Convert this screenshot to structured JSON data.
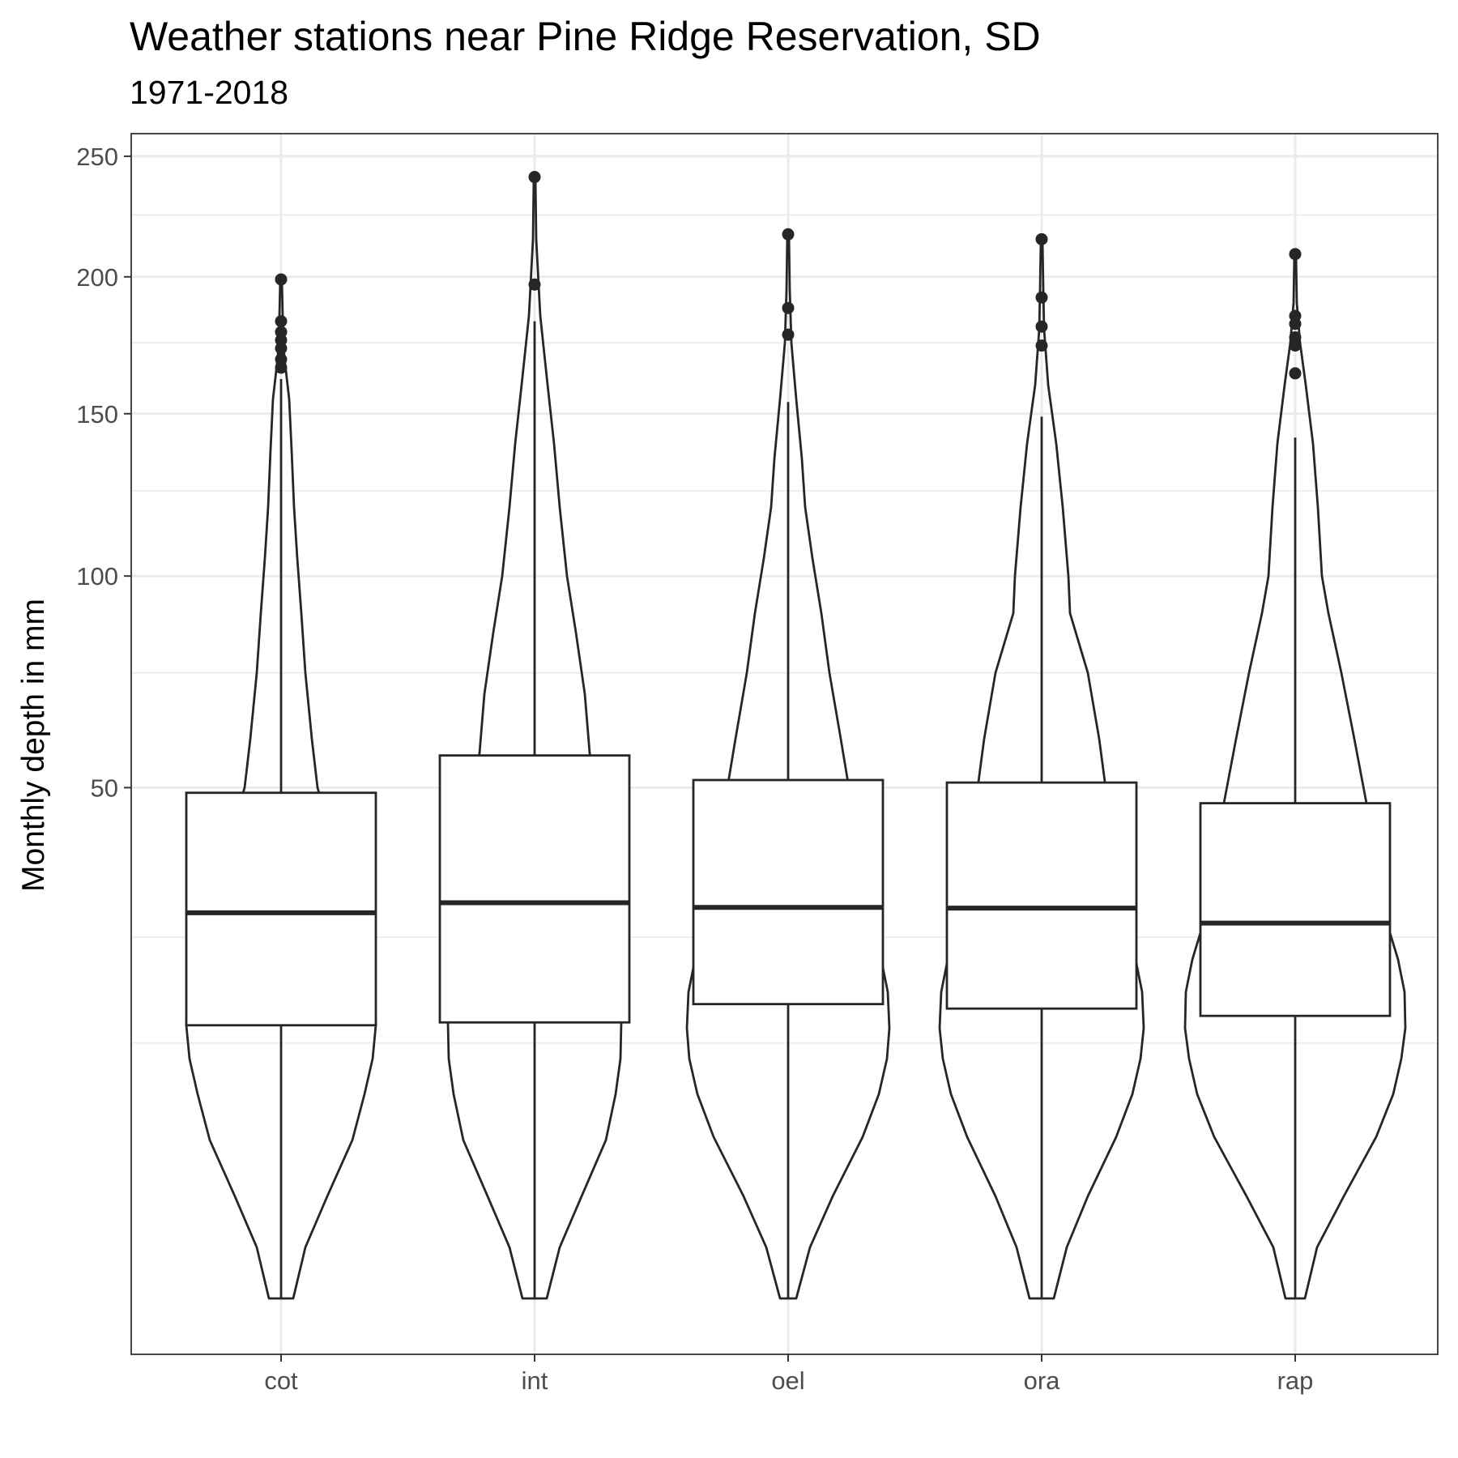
{
  "chart_data": {
    "type": "violin",
    "title": "Weather stations near Pine Ridge Reservation, SD",
    "subtitle": "1971-2018",
    "xlabel": "",
    "ylabel": "Monthly depth in mm",
    "y_scale": "sqrt",
    "ylim": [
      0,
      260
    ],
    "y_ticks": [
      50,
      100,
      150,
      200,
      250
    ],
    "y_minor_ticks": [
      12.5,
      25,
      75,
      125,
      175,
      225
    ],
    "grid": true,
    "legend": "none",
    "categories": [
      "cot",
      "int",
      "oel",
      "ora",
      "rap"
    ],
    "box": {
      "q1": [
        14.3,
        14.6,
        16.6,
        16.1,
        15.3
      ],
      "median": [
        28.5,
        30.0,
        29.3,
        29.2,
        27.0
      ],
      "q3": [
        49.0,
        56.5,
        51.5,
        51.0,
        47.0
      ],
      "whisker_low": [
        0,
        0,
        0,
        0,
        0
      ],
      "whisker_high": [
        162,
        183,
        154,
        149,
        142
      ]
    },
    "outliers": [
      [
        199,
        183,
        179,
        176,
        173,
        169,
        166
      ],
      [
        241,
        197
      ],
      [
        217,
        188,
        178
      ],
      [
        215,
        192,
        181,
        174
      ],
      [
        209,
        185,
        182,
        177,
        174,
        164
      ]
    ],
    "violin_halfwidth": [
      [
        [
          0,
          15
        ],
        [
          0.5,
          30
        ],
        [
          2,
          57
        ],
        [
          4.8,
          88
        ],
        [
          8,
          103
        ],
        [
          11,
          113
        ],
        [
          14.3,
          117
        ],
        [
          18,
          115
        ],
        [
          22,
          108
        ],
        [
          26,
          100
        ],
        [
          32,
          85
        ],
        [
          40,
          65
        ],
        [
          50,
          45
        ],
        [
          60,
          38
        ],
        [
          75,
          30
        ],
        [
          90,
          25
        ],
        [
          105,
          20
        ],
        [
          120,
          16
        ],
        [
          138,
          13
        ],
        [
          155,
          10
        ],
        [
          170,
          4
        ],
        [
          185,
          2
        ],
        [
          199,
          1
        ]
      ],
      [
        [
          0,
          15
        ],
        [
          0.5,
          31
        ],
        [
          2,
          58
        ],
        [
          4.8,
          88
        ],
        [
          8,
          100
        ],
        [
          11,
          106
        ],
        [
          14.6,
          107
        ],
        [
          18,
          105
        ],
        [
          22,
          104
        ],
        [
          26,
          103
        ],
        [
          32,
          99
        ],
        [
          40,
          90
        ],
        [
          50,
          78
        ],
        [
          57,
          68
        ],
        [
          70,
          62
        ],
        [
          85,
          51
        ],
        [
          100,
          40
        ],
        [
          120,
          31
        ],
        [
          140,
          24
        ],
        [
          160,
          16
        ],
        [
          185,
          7
        ],
        [
          215,
          2
        ],
        [
          241,
          1
        ]
      ],
      [
        [
          0,
          10
        ],
        [
          0.5,
          27
        ],
        [
          2,
          55
        ],
        [
          5,
          92
        ],
        [
          8,
          112
        ],
        [
          11,
          122
        ],
        [
          14,
          125
        ],
        [
          18,
          123
        ],
        [
          22,
          115
        ],
        [
          26,
          103
        ],
        [
          30,
          95
        ],
        [
          40,
          84
        ],
        [
          50,
          75
        ],
        [
          60,
          65
        ],
        [
          75,
          51
        ],
        [
          90,
          41
        ],
        [
          105,
          30
        ],
        [
          120,
          21
        ],
        [
          135,
          17
        ],
        [
          155,
          10
        ],
        [
          175,
          4
        ],
        [
          195,
          2
        ],
        [
          217,
          1
        ]
      ],
      [
        [
          0,
          15
        ],
        [
          0.5,
          31
        ],
        [
          2,
          57
        ],
        [
          5,
          92
        ],
        [
          8,
          112
        ],
        [
          11,
          122
        ],
        [
          14,
          126
        ],
        [
          18,
          124
        ],
        [
          22,
          116
        ],
        [
          26,
          105
        ],
        [
          30,
          98
        ],
        [
          40,
          87
        ],
        [
          50,
          79
        ],
        [
          60,
          71
        ],
        [
          75,
          57
        ],
        [
          90,
          35
        ],
        [
          100,
          33
        ],
        [
          120,
          26
        ],
        [
          140,
          18
        ],
        [
          160,
          8
        ],
        [
          180,
          3
        ],
        [
          195,
          2
        ],
        [
          215,
          1
        ]
      ],
      [
        [
          0,
          12
        ],
        [
          0.5,
          27
        ],
        [
          2,
          60
        ],
        [
          5,
          100
        ],
        [
          8,
          121
        ],
        [
          11,
          131
        ],
        [
          14,
          136
        ],
        [
          18,
          135
        ],
        [
          22,
          127
        ],
        [
          26,
          116
        ],
        [
          30,
          109
        ],
        [
          38,
          99
        ],
        [
          47,
          88
        ],
        [
          60,
          73
        ],
        [
          75,
          57
        ],
        [
          90,
          41
        ],
        [
          100,
          33
        ],
        [
          120,
          28
        ],
        [
          140,
          22
        ],
        [
          160,
          13
        ],
        [
          175,
          6
        ],
        [
          190,
          2
        ],
        [
          209,
          1
        ]
      ]
    ]
  }
}
